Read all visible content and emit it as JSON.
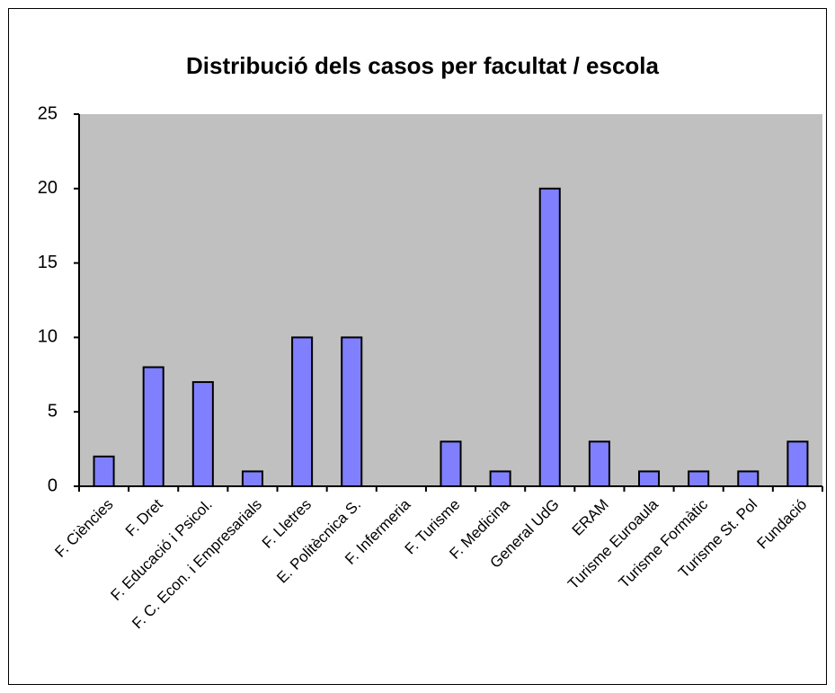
{
  "chart_data": {
    "type": "bar",
    "title": "Distribució dels casos per facultat / escola",
    "categories": [
      "F. Ciències",
      "F. Dret",
      "F. Educació i Psicol.",
      "F. C. Econ. i Empresarials",
      "F. Lletres",
      "E. Politècnica S.",
      "F. Infermeria",
      "F. Turisme",
      "F. Medicina",
      "General UdG",
      "ERAM",
      "Turisme Euroaula",
      "Turisme Formàtic",
      "Turisme St. Pol",
      "Fundació"
    ],
    "values": [
      2,
      8,
      7,
      1,
      10,
      10,
      0,
      3,
      1,
      20,
      3,
      1,
      1,
      1,
      3
    ],
    "color": "#8080ff",
    "ylim": [
      0,
      25
    ],
    "yticks": [
      0,
      5,
      10,
      15,
      20,
      25
    ],
    "grid": false
  }
}
